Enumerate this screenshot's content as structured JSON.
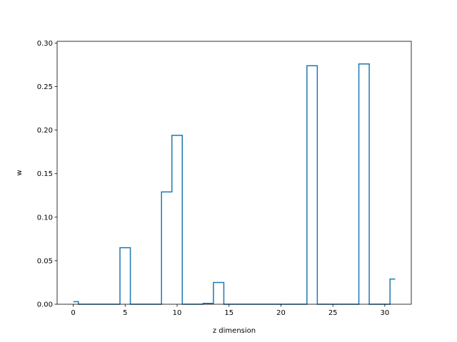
{
  "chart_data": {
    "type": "line",
    "drawstyle": "steps-mid",
    "xlabel": "z dimension",
    "ylabel": "w",
    "xlim": [
      -1.55,
      32.55
    ],
    "ylim": [
      0.0,
      0.302
    ],
    "xticks": [
      0,
      5,
      10,
      15,
      20,
      25,
      30
    ],
    "xtick_labels": [
      "0",
      "5",
      "10",
      "15",
      "20",
      "25",
      "30"
    ],
    "yticks": [
      0.0,
      0.05,
      0.1,
      0.15,
      0.2,
      0.25,
      0.3
    ],
    "ytick_labels": [
      "0.00",
      "0.05",
      "0.10",
      "0.15",
      "0.20",
      "0.25",
      "0.30"
    ],
    "grid": false,
    "series": [
      {
        "color": "#1f77b4",
        "x": [
          0,
          1,
          2,
          3,
          4,
          5,
          6,
          7,
          8,
          9,
          10,
          11,
          12,
          13,
          14,
          15,
          16,
          17,
          18,
          19,
          20,
          21,
          22,
          23,
          24,
          25,
          26,
          27,
          28,
          29,
          30,
          31
        ],
        "y": [
          0.003,
          0.0,
          0.0,
          0.0,
          0.0,
          0.065,
          0.0,
          0.0,
          0.0,
          0.129,
          0.194,
          0.0,
          0.0,
          0.001,
          0.025,
          0.0,
          0.0,
          0.0,
          0.0,
          0.0,
          0.0,
          0.0,
          0.0,
          0.274,
          0.0,
          0.0,
          0.0,
          0.0,
          0.276,
          0.0,
          0.0,
          0.029
        ]
      }
    ]
  }
}
